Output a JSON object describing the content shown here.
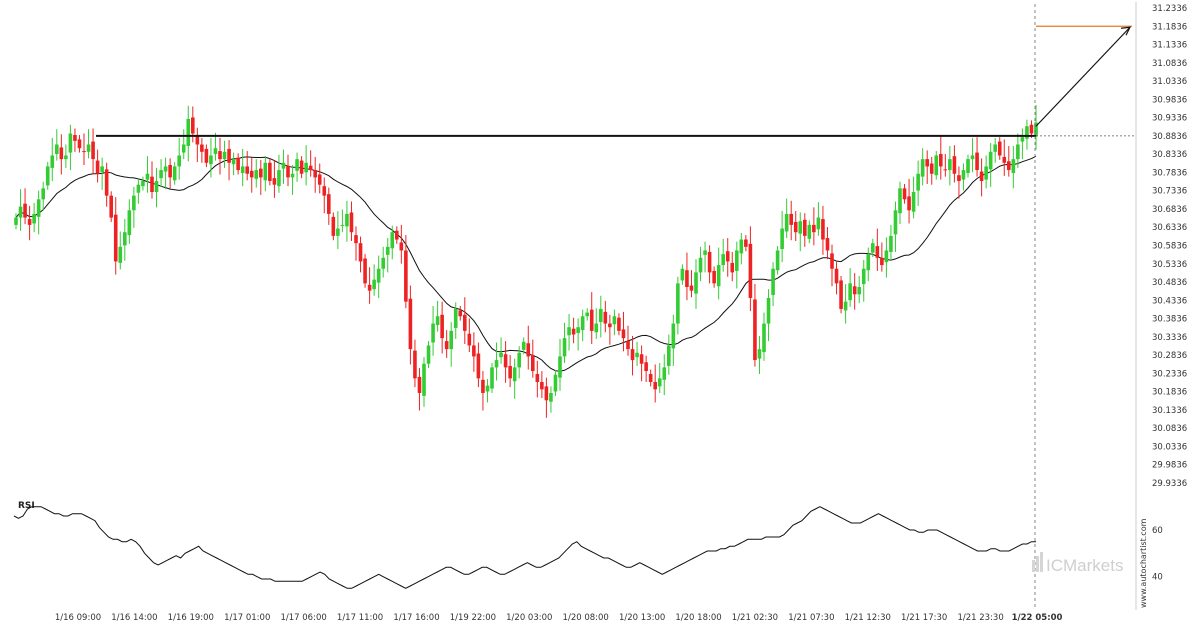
{
  "chart_data": {
    "type": "candlestick",
    "symbol": "",
    "y_axis": {
      "ticks": [
        "31.2336",
        "31.1836",
        "31.1336",
        "31.0836",
        "31.0336",
        "30.9836",
        "30.9336",
        "30.8836",
        "30.8336",
        "30.7836",
        "30.7336",
        "30.6836",
        "30.6336",
        "30.5836",
        "30.5336",
        "30.4836",
        "30.4336",
        "30.3836",
        "30.3336",
        "30.2836",
        "30.2336",
        "30.1836",
        "30.1336",
        "30.0836",
        "30.0336",
        "29.9836",
        "29.9336"
      ],
      "min": 29.9336,
      "max": 31.2336,
      "position": "right"
    },
    "x_axis": {
      "ticks": [
        "1/16 09:00",
        "1/16 14:00",
        "1/16 19:00",
        "1/17 01:00",
        "1/17 06:00",
        "1/17 11:00",
        "1/17 16:00",
        "1/19 22:00",
        "1/20 03:00",
        "1/20 08:00",
        "1/20 13:00",
        "1/20 18:00",
        "1/21 02:30",
        "1/21 07:30",
        "1/21 12:30",
        "1/21 17:30",
        "1/21 23:30",
        "1/22 05:00"
      ],
      "highlighted_tick": "1/22 05:00"
    },
    "closes": [
      30.66,
      30.69,
      30.66,
      30.64,
      30.67,
      30.71,
      30.74,
      30.8,
      30.83,
      30.86,
      30.82,
      30.83,
      30.89,
      30.87,
      30.85,
      30.84,
      30.86,
      30.82,
      30.78,
      30.8,
      30.72,
      30.66,
      30.54,
      30.58,
      30.62,
      30.68,
      30.72,
      30.75,
      30.76,
      30.78,
      30.73,
      30.76,
      30.79,
      30.8,
      30.77,
      30.8,
      30.83,
      30.86,
      30.93,
      30.89,
      30.86,
      30.84,
      30.81,
      30.83,
      30.85,
      30.82,
      30.84,
      30.81,
      30.82,
      30.79,
      30.8,
      30.78,
      30.77,
      30.79,
      30.77,
      30.81,
      30.76,
      30.75,
      30.79,
      30.81,
      30.77,
      30.78,
      30.82,
      30.78,
      30.81,
      30.79,
      30.77,
      30.75,
      30.72,
      30.67,
      30.61,
      30.63,
      30.64,
      30.67,
      30.62,
      30.59,
      30.54,
      30.48,
      30.46,
      30.49,
      30.52,
      30.55,
      30.58,
      30.62,
      30.6,
      30.57,
      30.43,
      30.3,
      30.22,
      30.18,
      30.26,
      30.31,
      30.37,
      30.39,
      30.33,
      30.3,
      30.35,
      30.41,
      30.39,
      30.35,
      30.31,
      30.28,
      30.22,
      30.18,
      30.2,
      30.25,
      30.27,
      30.29,
      30.25,
      30.22,
      30.25,
      30.29,
      30.32,
      30.28,
      30.24,
      30.21,
      30.19,
      30.16,
      30.18,
      30.23,
      30.28,
      30.33,
      30.36,
      30.34,
      30.36,
      30.39,
      30.4,
      30.35,
      30.37,
      30.41,
      30.37,
      30.36,
      30.39,
      30.35,
      30.33,
      30.3,
      30.27,
      30.29,
      30.26,
      30.24,
      30.21,
      30.19,
      30.22,
      30.25,
      30.31,
      30.37,
      30.48,
      30.52,
      30.47,
      30.46,
      30.51,
      30.55,
      30.57,
      30.51,
      30.48,
      30.53,
      30.56,
      30.54,
      30.51,
      30.57,
      30.6,
      30.58,
      30.44,
      30.27,
      30.3,
      30.37,
      30.44,
      30.52,
      30.57,
      30.63,
      30.67,
      30.64,
      30.62,
      30.65,
      30.61,
      30.64,
      30.62,
      30.66,
      30.6,
      30.57,
      30.52,
      30.48,
      30.41,
      30.43,
      30.48,
      30.45,
      30.47,
      30.52,
      30.56,
      30.59,
      30.55,
      30.53,
      30.57,
      30.61,
      30.68,
      30.74,
      30.71,
      30.68,
      30.73,
      30.78,
      30.82,
      30.8,
      30.78,
      30.83,
      30.8,
      30.79,
      30.82,
      30.78,
      30.76,
      30.79,
      30.82,
      30.83,
      30.79,
      30.76,
      30.8,
      30.84,
      30.86,
      30.83,
      30.81,
      30.79,
      30.82,
      30.86,
      30.88,
      30.91,
      30.89,
      30.92
    ]
  },
  "rsi": {
    "title": "RSI",
    "ticks": [
      "60",
      "40"
    ],
    "values": [
      66,
      65,
      66,
      69,
      70,
      70,
      70,
      69,
      68,
      67,
      67,
      66,
      66,
      67,
      67,
      67,
      66,
      65,
      64,
      61,
      59,
      57,
      56,
      56,
      55,
      55,
      56,
      55,
      53,
      50,
      48,
      46,
      45,
      46,
      47,
      48,
      49,
      48,
      50,
      51,
      52,
      53,
      51,
      50,
      49,
      48,
      47,
      46,
      45,
      44,
      43,
      42,
      41,
      41,
      40,
      39,
      39,
      39,
      38,
      38,
      38,
      38,
      38,
      38,
      38,
      39,
      40,
      41,
      42,
      41,
      39,
      38,
      37,
      36,
      35,
      35,
      36,
      37,
      38,
      39,
      40,
      41,
      40,
      39,
      38,
      37,
      36,
      35,
      36,
      37,
      38,
      39,
      40,
      41,
      42,
      43,
      44,
      44,
      43,
      42,
      41,
      41,
      42,
      43,
      44,
      44,
      43,
      42,
      41,
      41,
      42,
      43,
      44,
      45,
      46,
      45,
      44,
      44,
      45,
      46,
      47,
      48,
      50,
      52,
      54,
      55,
      53,
      52,
      51,
      50,
      49,
      48,
      48,
      47,
      46,
      45,
      44,
      44,
      45,
      46,
      45,
      44,
      43,
      42,
      41,
      42,
      43,
      44,
      45,
      46,
      47,
      48,
      49,
      50,
      51,
      51,
      51,
      52,
      52,
      53,
      53,
      54,
      55,
      56,
      56,
      56,
      56,
      57,
      57,
      57,
      57,
      58,
      60,
      62,
      63,
      64,
      66,
      68,
      69,
      70,
      69,
      68,
      67,
      66,
      65,
      64,
      63,
      63,
      63,
      64,
      65,
      66,
      67,
      66,
      65,
      64,
      63,
      62,
      61,
      60,
      60,
      59,
      59,
      60,
      60,
      60,
      59,
      58,
      57,
      56,
      55,
      54,
      53,
      52,
      51,
      51,
      51,
      52,
      52,
      51,
      51,
      51,
      52,
      53,
      54,
      54,
      55,
      55
    ]
  },
  "watermark": "www.autochartist.com",
  "brand": "ICMarkets",
  "colors": {
    "bull": "#33cc33",
    "bear": "#ee2222",
    "ma": "#111111",
    "resistance": "#111111",
    "target": "#e07b2a",
    "grid": "#e5e5e5",
    "axis": "#cccccc"
  }
}
